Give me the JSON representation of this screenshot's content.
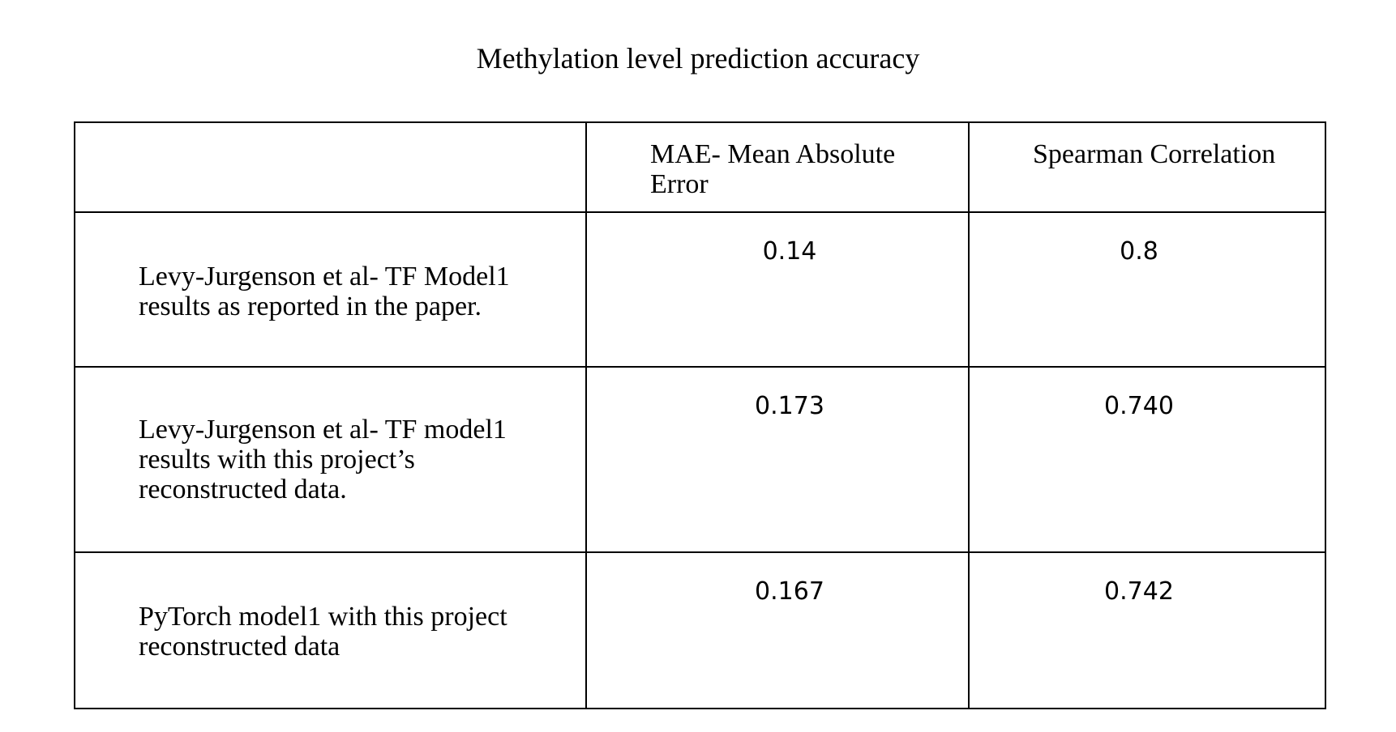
{
  "title": "Methylation level prediction accuracy",
  "table": {
    "headers": [
      "",
      "MAE- Mean Absolute Error",
      "Spearman Correlation"
    ],
    "rows": [
      {
        "label": "Levy-Jurgenson et al- TF Model1 results as reported in the paper.",
        "mae": "0.14",
        "spearman": "0.8"
      },
      {
        "label": "Levy-Jurgenson et al-  TF model1 results with this project’s reconstructed  data.",
        "mae": "0.173",
        "spearman": "0.740"
      },
      {
        "label": "PyTorch model1 with this project reconstructed data",
        "mae": "0.167",
        "spearman": "0.742"
      }
    ]
  }
}
